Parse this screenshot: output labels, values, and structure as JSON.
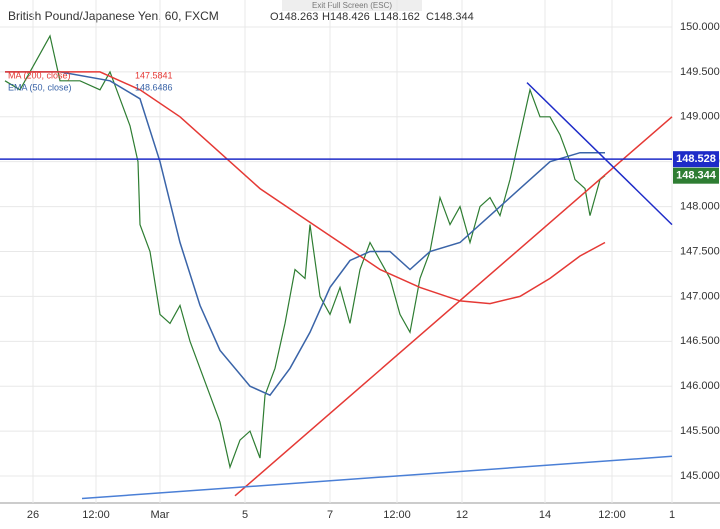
{
  "chart_data": {
    "type": "line",
    "title": "British Pound/Japanese Yen, 60, FXCM",
    "ohlc": [
      "O148.263",
      "H148.426",
      "L148.162",
      "C148.344"
    ],
    "button": "Exit Full Screen (ESC)",
    "legend": [
      {
        "label": "MA (200, close)",
        "value": 147.5841,
        "color": "#e53935"
      },
      {
        "label": "EMA (50, close)",
        "value": 148.6486,
        "color": "#3a64a8"
      }
    ],
    "xlim": [
      0,
      672
    ],
    "ylim": [
      144.7,
      150.3
    ],
    "xticks": [
      {
        "value": 33,
        "label": "26"
      },
      {
        "value": 96,
        "label": "12:00"
      },
      {
        "value": 160,
        "label": "Mar"
      },
      {
        "value": 245,
        "label": "5"
      },
      {
        "value": 330,
        "label": "7"
      },
      {
        "value": 397,
        "label": "12:00"
      },
      {
        "value": 462,
        "label": "12"
      },
      {
        "value": 545,
        "label": "14"
      },
      {
        "value": 612,
        "label": "12:00"
      },
      {
        "value": 672,
        "label": "1"
      }
    ],
    "yticks": [
      {
        "value": 145,
        "label": "145.000"
      },
      {
        "value": 145.5,
        "label": "145.500"
      },
      {
        "value": 146,
        "label": "146.000"
      },
      {
        "value": 146.5,
        "label": "146.500"
      },
      {
        "value": 147,
        "label": "147.000"
      },
      {
        "value": 147.5,
        "label": "147.500"
      },
      {
        "value": 148,
        "label": "148.000"
      },
      {
        "value": 148.5,
        "label": "148.500"
      },
      {
        "value": 149,
        "label": "149.000"
      },
      {
        "value": 149.5,
        "label": "149.500"
      },
      {
        "value": 150,
        "label": "150.000"
      }
    ],
    "grid": true,
    "series": [
      {
        "color": "#2e7d32",
        "x": [
          5,
          20,
          40,
          50,
          60,
          80,
          100,
          110,
          120,
          130,
          138,
          140,
          150,
          160,
          170,
          180,
          190,
          200,
          210,
          220,
          230,
          240,
          250,
          260,
          265,
          275,
          285,
          295,
          305,
          310,
          320,
          330,
          340,
          350,
          360,
          370,
          380,
          390,
          400,
          410,
          420,
          430,
          440,
          450,
          460,
          470,
          480,
          490,
          500,
          510,
          520,
          530,
          540,
          550,
          560,
          570,
          575,
          585,
          590,
          600,
          605
        ],
        "values": [
          149.4,
          149.3,
          149.7,
          149.9,
          149.4,
          149.4,
          149.3,
          149.5,
          149.2,
          148.9,
          148.5,
          147.8,
          147.5,
          146.8,
          146.7,
          146.9,
          146.5,
          146.2,
          145.9,
          145.6,
          145.1,
          145.4,
          145.5,
          145.2,
          145.9,
          146.2,
          146.7,
          147.3,
          147.2,
          147.8,
          147.0,
          146.8,
          147.1,
          146.7,
          147.3,
          147.6,
          147.4,
          147.2,
          146.8,
          146.6,
          147.2,
          147.5,
          148.1,
          147.8,
          148.0,
          147.6,
          148.0,
          148.1,
          147.9,
          148.3,
          148.8,
          149.3,
          149.0,
          149.0,
          148.8,
          148.5,
          148.3,
          148.2,
          147.9,
          148.3,
          148.344
        ]
      },
      {
        "color": "#3a64a8",
        "x": [
          5,
          60,
          110,
          140,
          160,
          180,
          200,
          220,
          250,
          270,
          290,
          310,
          330,
          350,
          370,
          390,
          410,
          430,
          460,
          490,
          520,
          550,
          580,
          605
        ],
        "values": [
          149.5,
          149.5,
          149.4,
          149.2,
          148.5,
          147.6,
          146.9,
          146.4,
          146.0,
          145.9,
          146.2,
          146.6,
          147.1,
          147.4,
          147.5,
          147.5,
          147.3,
          147.5,
          147.6,
          147.9,
          148.2,
          148.5,
          148.6,
          148.6
        ]
      },
      {
        "color": "#e53935",
        "x": [
          5,
          60,
          100,
          140,
          180,
          220,
          260,
          300,
          340,
          380,
          420,
          460,
          490,
          520,
          550,
          580,
          605
        ],
        "values": [
          149.5,
          149.5,
          149.5,
          149.3,
          149.0,
          148.6,
          148.2,
          147.9,
          147.6,
          147.3,
          147.1,
          146.95,
          146.92,
          147.0,
          147.2,
          147.45,
          147.6
        ]
      },
      {
        "color": "#e53935",
        "x": [
          235,
          672
        ],
        "values": [
          144.78,
          149.0
        ]
      },
      {
        "color": "#1e2bc8",
        "x": [
          527,
          672
        ],
        "values": [
          149.38,
          147.8
        ]
      },
      {
        "color": "#4a7fd6",
        "x": [
          82,
          672
        ],
        "values": [
          144.75,
          145.22
        ]
      }
    ],
    "hline": {
      "value": 148.528,
      "label": "148.528",
      "color": "#1e2bc8"
    },
    "last": {
      "value": 148.344,
      "label": "148.344",
      "color": "#2e7d32"
    }
  }
}
